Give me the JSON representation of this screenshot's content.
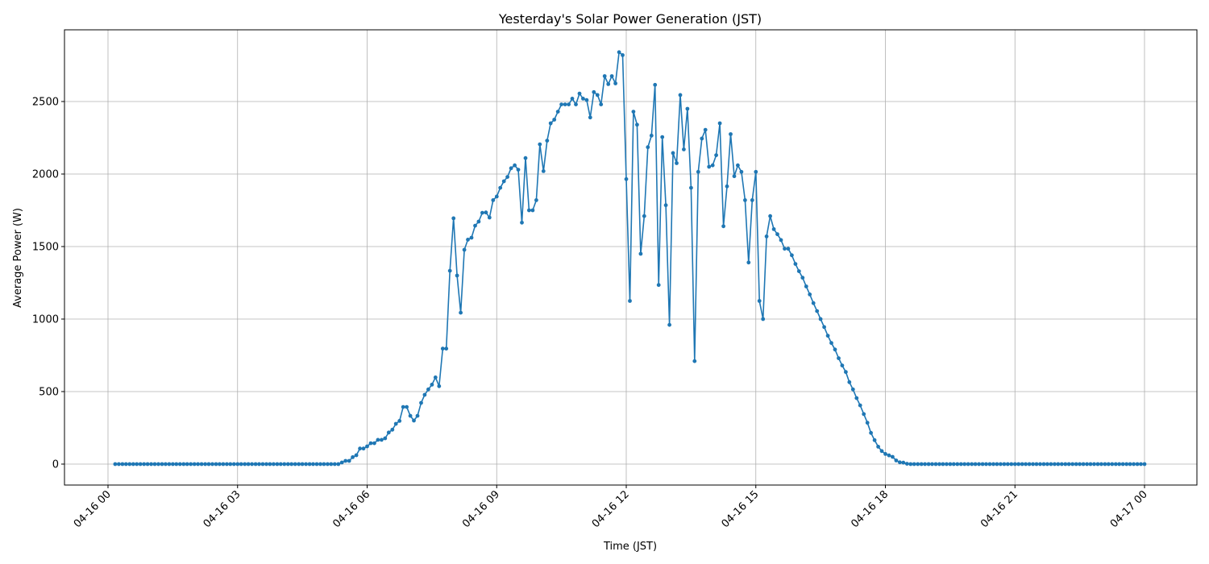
{
  "chart_data": {
    "type": "line",
    "title": "Yesterday's Solar Power Generation (JST)",
    "xlabel": "Time (JST)",
    "ylabel": "Average Power (W)",
    "ylim": [
      -140,
      2940
    ],
    "xlim": [
      "04-15 23:10",
      "04-17 00:35"
    ],
    "grid": true,
    "marker": "circle",
    "color": "#1f77b4",
    "yticks": [
      0,
      500,
      1000,
      1500,
      2000,
      2500
    ],
    "xticks": [
      "04-16 00",
      "04-16 03",
      "04-16 06",
      "04-16 09",
      "04-16 12",
      "04-16 15",
      "04-16 18",
      "04-16 21",
      "04-17 00"
    ],
    "x": [
      "04-16 00:10",
      "04-16 00:15",
      "04-16 00:20",
      "04-16 00:25",
      "04-16 00:30",
      "04-16 00:35",
      "04-16 00:40",
      "04-16 00:45",
      "04-16 00:50",
      "04-16 00:55",
      "04-16 01:00",
      "04-16 01:05",
      "04-16 01:10",
      "04-16 01:15",
      "04-16 01:20",
      "04-16 01:25",
      "04-16 01:30",
      "04-16 01:35",
      "04-16 01:40",
      "04-16 01:45",
      "04-16 01:50",
      "04-16 01:55",
      "04-16 02:00",
      "04-16 02:05",
      "04-16 02:10",
      "04-16 02:15",
      "04-16 02:20",
      "04-16 02:25",
      "04-16 02:30",
      "04-16 02:35",
      "04-16 02:40",
      "04-16 02:45",
      "04-16 02:50",
      "04-16 02:55",
      "04-16 03:00",
      "04-16 03:05",
      "04-16 03:10",
      "04-16 03:15",
      "04-16 03:20",
      "04-16 03:25",
      "04-16 03:30",
      "04-16 03:35",
      "04-16 03:40",
      "04-16 03:45",
      "04-16 03:50",
      "04-16 03:55",
      "04-16 04:00",
      "04-16 04:05",
      "04-16 04:10",
      "04-16 04:15",
      "04-16 04:20",
      "04-16 04:25",
      "04-16 04:30",
      "04-16 04:35",
      "04-16 04:40",
      "04-16 04:45",
      "04-16 04:50",
      "04-16 04:55",
      "04-16 05:00",
      "04-16 05:05",
      "04-16 05:10",
      "04-16 05:15",
      "04-16 05:20",
      "04-16 05:25",
      "04-16 05:30",
      "04-16 05:35",
      "04-16 05:40",
      "04-16 05:45",
      "04-16 05:50",
      "04-16 05:55",
      "04-16 06:00",
      "04-16 06:05",
      "04-16 06:10",
      "04-16 06:15",
      "04-16 06:20",
      "04-16 06:25",
      "04-16 06:30",
      "04-16 06:35",
      "04-16 06:40",
      "04-16 06:45",
      "04-16 06:50",
      "04-16 06:55",
      "04-16 07:00",
      "04-16 07:05",
      "04-16 07:10",
      "04-16 07:15",
      "04-16 07:20",
      "04-16 07:25",
      "04-16 07:30",
      "04-16 07:35",
      "04-16 07:40",
      "04-16 07:45",
      "04-16 07:50",
      "04-16 07:55",
      "04-16 08:00",
      "04-16 08:05",
      "04-16 08:10",
      "04-16 08:15",
      "04-16 08:20",
      "04-16 08:25",
      "04-16 08:30",
      "04-16 08:35",
      "04-16 08:40",
      "04-16 08:45",
      "04-16 08:50",
      "04-16 08:55",
      "04-16 09:00",
      "04-16 09:05",
      "04-16 09:10",
      "04-16 09:15",
      "04-16 09:20",
      "04-16 09:25",
      "04-16 09:30",
      "04-16 09:35",
      "04-16 09:40",
      "04-16 09:45",
      "04-16 09:50",
      "04-16 09:55",
      "04-16 10:00",
      "04-16 10:05",
      "04-16 10:10",
      "04-16 10:15",
      "04-16 10:20",
      "04-16 10:25",
      "04-16 10:30",
      "04-16 10:35",
      "04-16 10:40",
      "04-16 10:45",
      "04-16 10:50",
      "04-16 10:55",
      "04-16 11:00",
      "04-16 11:05",
      "04-16 11:10",
      "04-16 11:15",
      "04-16 11:20",
      "04-16 11:25",
      "04-16 11:30",
      "04-16 11:35",
      "04-16 11:40",
      "04-16 11:45",
      "04-16 11:50",
      "04-16 11:55",
      "04-16 12:00",
      "04-16 12:05",
      "04-16 12:10",
      "04-16 12:15",
      "04-16 12:20",
      "04-16 12:25",
      "04-16 12:30",
      "04-16 12:35",
      "04-16 12:40",
      "04-16 12:45",
      "04-16 12:50",
      "04-16 12:55",
      "04-16 13:00",
      "04-16 13:05",
      "04-16 13:10",
      "04-16 13:15",
      "04-16 13:20",
      "04-16 13:25",
      "04-16 13:30",
      "04-16 13:35",
      "04-16 13:40",
      "04-16 13:45",
      "04-16 13:50",
      "04-16 13:55",
      "04-16 14:00",
      "04-16 14:05",
      "04-16 14:10",
      "04-16 14:15",
      "04-16 14:20",
      "04-16 14:25",
      "04-16 14:30",
      "04-16 14:35",
      "04-16 14:40",
      "04-16 14:45",
      "04-16 14:50",
      "04-16 14:55",
      "04-16 15:00",
      "04-16 15:05",
      "04-16 15:10",
      "04-16 15:15",
      "04-16 15:20",
      "04-16 15:25",
      "04-16 15:30",
      "04-16 15:35",
      "04-16 15:40",
      "04-16 15:45",
      "04-16 15:50",
      "04-16 15:55",
      "04-16 16:00",
      "04-16 16:05",
      "04-16 16:10",
      "04-16 16:15",
      "04-16 16:20",
      "04-16 16:25",
      "04-16 16:30",
      "04-16 16:35",
      "04-16 16:40",
      "04-16 16:45",
      "04-16 16:50",
      "04-16 16:55",
      "04-16 17:00",
      "04-16 17:05",
      "04-16 17:10",
      "04-16 17:15",
      "04-16 17:20",
      "04-16 17:25",
      "04-16 17:30",
      "04-16 17:35",
      "04-16 17:40",
      "04-16 17:45",
      "04-16 17:50",
      "04-16 17:55",
      "04-16 18:00",
      "04-16 18:05",
      "04-16 18:10",
      "04-16 18:15",
      "04-16 18:20",
      "04-16 18:25",
      "04-16 18:30",
      "04-16 18:35",
      "04-16 18:40",
      "04-16 18:45",
      "04-16 18:50",
      "04-16 18:55",
      "04-16 19:00",
      "04-16 19:05",
      "04-16 19:10",
      "04-16 19:15",
      "04-16 19:20",
      "04-16 19:25",
      "04-16 19:30",
      "04-16 19:35",
      "04-16 19:40",
      "04-16 19:45",
      "04-16 19:50",
      "04-16 19:55",
      "04-16 20:00",
      "04-16 20:05",
      "04-16 20:10",
      "04-16 20:15",
      "04-16 20:20",
      "04-16 20:25",
      "04-16 20:30",
      "04-16 20:35",
      "04-16 20:40",
      "04-16 20:45",
      "04-16 20:50",
      "04-16 20:55",
      "04-16 21:00",
      "04-16 21:05",
      "04-16 21:10",
      "04-16 21:15",
      "04-16 21:20",
      "04-16 21:25",
      "04-16 21:30",
      "04-16 21:35",
      "04-16 21:40",
      "04-16 21:45",
      "04-16 21:50",
      "04-16 21:55",
      "04-16 22:00",
      "04-16 22:05",
      "04-16 22:10",
      "04-16 22:15",
      "04-16 22:20",
      "04-16 22:25",
      "04-16 22:30",
      "04-16 22:35",
      "04-16 22:40",
      "04-16 22:45",
      "04-16 22:50",
      "04-16 22:55",
      "04-16 23:00",
      "04-16 23:05",
      "04-16 23:10",
      "04-16 23:15",
      "04-16 23:20",
      "04-16 23:25",
      "04-16 23:30",
      "04-16 23:35",
      "04-16 23:40",
      "04-16 23:45",
      "04-16 23:50",
      "04-16 23:55",
      "04-17 00:00"
    ],
    "y": [
      0,
      0,
      0,
      0,
      0,
      0,
      0,
      0,
      0,
      0,
      0,
      0,
      0,
      0,
      0,
      0,
      0,
      0,
      0,
      0,
      0,
      0,
      0,
      0,
      0,
      0,
      0,
      0,
      0,
      0,
      0,
      0,
      0,
      0,
      0,
      0,
      0,
      0,
      0,
      0,
      0,
      0,
      0,
      0,
      0,
      0,
      0,
      0,
      0,
      0,
      0,
      0,
      0,
      0,
      0,
      0,
      0,
      0,
      0,
      0,
      0,
      0,
      0,
      11,
      22,
      22,
      48,
      61,
      107,
      107,
      122,
      144,
      144,
      167,
      167,
      178,
      218,
      237,
      278,
      298,
      394,
      394,
      333,
      300,
      333,
      422,
      478,
      515,
      548,
      598,
      537,
      796,
      796,
      1333,
      1695,
      1300,
      1044,
      1478,
      1548,
      1561,
      1644,
      1672,
      1733,
      1735,
      1700,
      1820,
      1845,
      1905,
      1950,
      1980,
      2040,
      2060,
      2030,
      1665,
      2110,
      1750,
      1750,
      1820,
      2205,
      2020,
      2230,
      2350,
      2375,
      2430,
      2480,
      2480,
      2480,
      2520,
      2480,
      2555,
      2520,
      2510,
      2390,
      2565,
      2545,
      2480,
      2675,
      2620,
      2675,
      2625,
      2840,
      2820,
      1965,
      1125,
      2430,
      2340,
      1450,
      1710,
      2185,
      2265,
      2615,
      1235,
      2255,
      1785,
      960,
      2145,
      2075,
      2545,
      2170,
      2450,
      1905,
      710,
      2015,
      2245,
      2305,
      2050,
      2060,
      2130,
      2350,
      1640,
      1915,
      2275,
      1985,
      2060,
      2015,
      1820,
      1390,
      1820,
      2015,
      1125,
      1000,
      1570,
      1710,
      1620,
      1585,
      1545,
      1485,
      1485,
      1440,
      1380,
      1330,
      1285,
      1225,
      1170,
      1110,
      1055,
      1000,
      945,
      885,
      835,
      790,
      730,
      680,
      635,
      565,
      515,
      455,
      405,
      345,
      285,
      215,
      165,
      120,
      90,
      70,
      60,
      50,
      25,
      12,
      10,
      2,
      0,
      0,
      0,
      0,
      0,
      0,
      0,
      0,
      0,
      0,
      0,
      0,
      0,
      0,
      0,
      0,
      0,
      0,
      0,
      0,
      0,
      0,
      0,
      0,
      0,
      0,
      0,
      0,
      0,
      0,
      0,
      0,
      0,
      0,
      0,
      0,
      0,
      0,
      0,
      0,
      0,
      0,
      0,
      0,
      0,
      0,
      0,
      0,
      0,
      0,
      0,
      0,
      0,
      0,
      0,
      0,
      0,
      0,
      0,
      0,
      0,
      0,
      0,
      0,
      0,
      0
    ]
  }
}
